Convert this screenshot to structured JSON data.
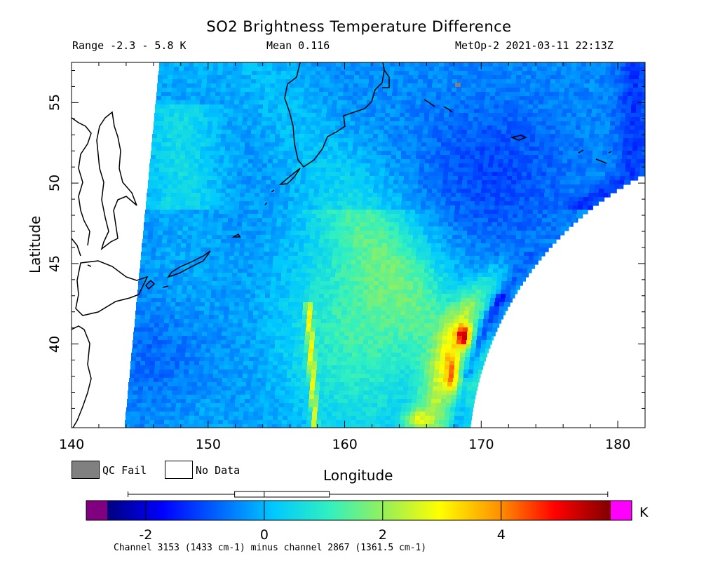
{
  "chart_data": {
    "type": "heatmap",
    "title": "SO2 Brightness Temperature Difference",
    "subtitle_range": "Range -2.3 - 5.8 K",
    "subtitle_mean": "Mean 0.116",
    "subtitle_satellite": "MetOp-2 2021-03-11 22:13Z",
    "xlabel": "Longitude",
    "ylabel": "Latitude",
    "xlim": [
      140,
      182
    ],
    "ylim": [
      34.8,
      57.5
    ],
    "x_ticks": [
      "140",
      "150",
      "160",
      "170",
      "180"
    ],
    "y_ticks": [
      "40",
      "45",
      "50",
      "55"
    ],
    "range_min": -2.3,
    "range_max": 5.8,
    "mean": 0.116,
    "colorbar": {
      "vmin": -2.65,
      "vmax": 5.85,
      "ticks": [
        "-2",
        "0",
        "2",
        "4"
      ],
      "tick_values": [
        -2,
        0,
        2,
        4
      ],
      "unit": "K",
      "under_color": "#800080",
      "over_color": "#ff00ff",
      "boxplot": {
        "whisker_low": -2.3,
        "q1": -0.5,
        "median": 0.0,
        "q3": 1.1,
        "whisker_high": 5.8
      }
    },
    "legend": [
      {
        "label": "QC Fail",
        "color": "#808080"
      },
      {
        "label": "No Data",
        "color": "#ffffff"
      }
    ],
    "footnote": "Channel 3153 (1433 cm-1) minus channel 2867 (1361.5 cm-1)"
  }
}
